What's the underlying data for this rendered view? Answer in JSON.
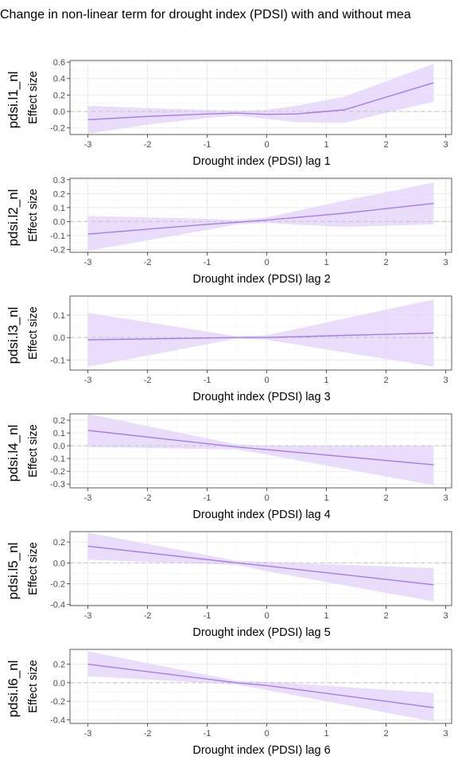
{
  "title": "Change in non-linear term for drought index (PDSI) with and without mea",
  "colors": {
    "line": "#a67be8",
    "ribbon": "#e6d7fc",
    "zero_line": "#c8c8c8",
    "grid_major": "#ebebeb",
    "grid_minor": "#f4f4f4",
    "panel_border": "#333333"
  },
  "chart_data": [
    {
      "type": "line",
      "facet_label": "pdsi.l1_nl",
      "xlabel": "Drought index (PDSI) lag 1",
      "ylabel": "Effect size",
      "xlim": [
        -3.3,
        3.1
      ],
      "ylim": [
        -0.28,
        0.62
      ],
      "x_ticks": [
        -3,
        -2,
        -1,
        0,
        1,
        2,
        3
      ],
      "y_ticks": [
        -0.2,
        0.0,
        0.2,
        0.4,
        0.6
      ],
      "y_tick_labels": [
        "-0.2",
        "0.0",
        "0.2",
        "0.4",
        "0.6"
      ],
      "reference_line": 0,
      "grid": true,
      "x": [
        -3.0,
        -2.0,
        -1.0,
        -0.5,
        0.0,
        0.5,
        1.3,
        2.8
      ],
      "y": [
        -0.1,
        -0.06,
        -0.03,
        -0.02,
        -0.035,
        -0.03,
        0.02,
        0.35
      ],
      "lower": [
        -0.27,
        -0.16,
        -0.08,
        -0.05,
        -0.09,
        -0.13,
        -0.14,
        0.12
      ],
      "upper": [
        0.07,
        0.04,
        0.02,
        0.01,
        0.02,
        0.07,
        0.18,
        0.58
      ]
    },
    {
      "type": "line",
      "facet_label": "pdsi.l2_nl",
      "xlabel": "Drought index (PDSI) lag 2",
      "ylabel": "Effect size",
      "xlim": [
        -3.3,
        3.1
      ],
      "ylim": [
        -0.22,
        0.31
      ],
      "x_ticks": [
        -3,
        -2,
        -1,
        0,
        1,
        2,
        3
      ],
      "y_ticks": [
        -0.2,
        -0.1,
        0.0,
        0.1,
        0.2,
        0.3
      ],
      "y_tick_labels": [
        "-0.2",
        "-0.1",
        "0.0",
        "0.1",
        "0.2",
        "0.3"
      ],
      "reference_line": 0,
      "grid": true,
      "x": [
        -3.0,
        -1.0,
        -0.5,
        0.0,
        1.3,
        2.8
      ],
      "y": [
        -0.09,
        -0.02,
        -0.005,
        0.01,
        0.06,
        0.13
      ],
      "lower": [
        -0.21,
        -0.06,
        -0.02,
        -0.01,
        -0.04,
        -0.02
      ],
      "upper": [
        0.04,
        0.02,
        0.01,
        0.03,
        0.15,
        0.28
      ]
    },
    {
      "type": "line",
      "facet_label": "pdsi.l3_nl",
      "xlabel": "Drought index (PDSI) lag 3",
      "ylabel": "Effect size",
      "xlim": [
        -3.3,
        3.1
      ],
      "ylim": [
        -0.145,
        0.185
      ],
      "x_ticks": [
        -3,
        -2,
        -1,
        0,
        1,
        2,
        3
      ],
      "y_ticks": [
        -0.1,
        0.0,
        0.1
      ],
      "y_tick_labels": [
        "-0.1",
        "0.0",
        "0.1"
      ],
      "reference_line": 0,
      "grid": true,
      "x": [
        -3.0,
        -0.5,
        0.0,
        2.8
      ],
      "y": [
        -0.01,
        0.0,
        0.0,
        0.02
      ],
      "lower": [
        -0.13,
        -0.005,
        -0.01,
        -0.13
      ],
      "upper": [
        0.11,
        0.005,
        0.01,
        0.17
      ]
    },
    {
      "type": "line",
      "facet_label": "pdsi.l4_nl",
      "xlabel": "Drought index (PDSI) lag 4",
      "ylabel": "Effect size",
      "xlim": [
        -3.3,
        3.1
      ],
      "ylim": [
        -0.33,
        0.25
      ],
      "x_ticks": [
        -3,
        -2,
        -1,
        0,
        1,
        2,
        3
      ],
      "y_ticks": [
        -0.3,
        -0.2,
        -0.1,
        0.0,
        0.1,
        0.2
      ],
      "y_tick_labels": [
        "-0.3",
        "-0.2",
        "-0.1",
        "0.0",
        "0.1",
        "0.2"
      ],
      "reference_line": 0,
      "grid": true,
      "x": [
        -3.0,
        -0.5,
        0.0,
        2.8
      ],
      "y": [
        0.12,
        -0.01,
        -0.03,
        -0.15
      ],
      "lower": [
        -0.01,
        -0.03,
        -0.07,
        -0.31
      ],
      "upper": [
        0.25,
        0.01,
        0.0,
        0.0
      ]
    },
    {
      "type": "line",
      "facet_label": "pdsi.l5_nl",
      "xlabel": "Drought index (PDSI) lag 5",
      "ylabel": "Effect size",
      "xlim": [
        -3.3,
        3.1
      ],
      "ylim": [
        -0.41,
        0.3
      ],
      "x_ticks": [
        -3,
        -2,
        -1,
        0,
        1,
        2,
        3
      ],
      "y_ticks": [
        -0.4,
        -0.2,
        0.0,
        0.2
      ],
      "y_tick_labels": [
        "-0.4",
        "-0.2",
        "0.0",
        "0.2"
      ],
      "reference_line": 0,
      "grid": true,
      "x": [
        -3.0,
        -0.5,
        0.0,
        2.8
      ],
      "y": [
        0.16,
        0.0,
        -0.03,
        -0.21
      ],
      "lower": [
        0.03,
        -0.02,
        -0.08,
        -0.37
      ],
      "upper": [
        0.29,
        0.02,
        0.01,
        -0.05
      ]
    },
    {
      "type": "line",
      "facet_label": "pdsi.l6_nl",
      "xlabel": "Drought index (PDSI) lag 6",
      "ylabel": "Effect size",
      "xlim": [
        -3.3,
        3.1
      ],
      "ylim": [
        -0.44,
        0.36
      ],
      "x_ticks": [
        -3,
        -2,
        -1,
        0,
        1,
        2,
        3
      ],
      "y_ticks": [
        -0.4,
        -0.2,
        0.0,
        0.2
      ],
      "y_tick_labels": [
        "-0.4",
        "-0.2",
        "0.0",
        "0.2"
      ],
      "reference_line": 0,
      "grid": true,
      "x": [
        -3.0,
        -0.5,
        0.0,
        2.8
      ],
      "y": [
        0.2,
        0.0,
        -0.03,
        -0.27
      ],
      "lower": [
        0.07,
        -0.02,
        -0.08,
        -0.42
      ],
      "upper": [
        0.34,
        0.02,
        0.01,
        -0.11
      ]
    }
  ]
}
